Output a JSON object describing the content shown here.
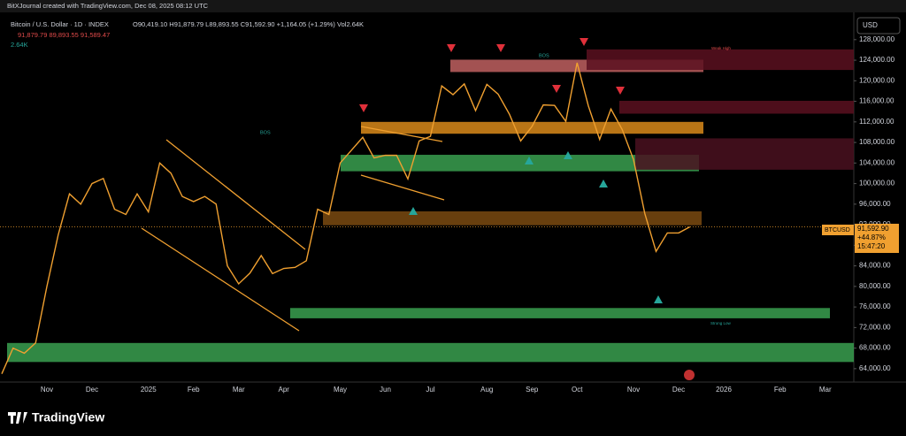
{
  "header": {
    "credit": "BitXJournal created with TradingView.com, Dec 08, 2025 08:12 UTC",
    "symbol": "Bitcoin / U.S. Dollar · 1D · INDEX",
    "ohlc": "O90,419.10 H91,879.79 L89,893.55 C91,592.90 +1,164.05 (+1.29%) Vol2.64K",
    "ma": "91,879.79  89,893.55  91,589.47",
    "vol": "2.64K",
    "currency": "USD"
  },
  "price_tag": {
    "symbol": "BTCUSD",
    "price": "91,592.90",
    "change": "+44.87%",
    "countdown": "15:47:20"
  },
  "annotations": [
    "BOS",
    "BOS",
    "Weak High",
    "Strong Low"
  ],
  "footer": {
    "brand": "TradingView"
  },
  "chart_data": {
    "type": "line",
    "color": "#f0a030",
    "categories": [
      null,
      null,
      null,
      null,
      "Nov",
      null,
      null,
      null,
      "Dec",
      null,
      null,
      null,
      null,
      "2025",
      null,
      null,
      null,
      "Feb",
      null,
      null,
      null,
      "Mar",
      null,
      null,
      null,
      "Apr",
      null,
      null,
      null,
      null,
      "May",
      null,
      null,
      null,
      "Jun",
      null,
      null,
      null,
      "Jul",
      null,
      null,
      null,
      null,
      "Aug",
      null,
      null,
      null,
      "Sep",
      null,
      null,
      null,
      "Oct",
      null,
      null,
      null,
      null,
      "Nov",
      null,
      null,
      null,
      "Dec",
      null,
      null,
      null,
      "2026",
      null,
      null,
      null,
      null,
      "Feb",
      null,
      null,
      null,
      "Mar",
      null,
      null,
      null,
      null
    ],
    "values": [
      63000,
      68000,
      67000,
      69000,
      80000,
      90000,
      98000,
      96000,
      100000,
      101000,
      95000,
      94000,
      98000,
      94500,
      104000,
      102000,
      97500,
      96500,
      97500,
      96000,
      84000,
      80500,
      82600,
      86000,
      82500,
      83500,
      83700,
      85000,
      95000,
      94000,
      104000,
      106500,
      109000,
      105000,
      105500,
      105500,
      100900,
      108300,
      109200,
      119000,
      117300,
      119400,
      114200,
      119300,
      117400,
      113500,
      108300,
      111100,
      115300,
      115200,
      112100,
      123500,
      115100,
      108600,
      114500,
      110500,
      104700,
      94200,
      86800,
      90400,
      90400,
      91592.9,
      null,
      null,
      null,
      null,
      null,
      null,
      null,
      null,
      null,
      null,
      null,
      null,
      null,
      null,
      null,
      null
    ],
    "ylim": [
      61400,
      133300
    ],
    "yticks": [
      {
        "value": 64000,
        "label": "64,000.00"
      },
      {
        "value": 68000,
        "label": "68,000.00"
      },
      {
        "value": 72000,
        "label": "72,000.00"
      },
      {
        "value": 76000,
        "label": "76,000.00"
      },
      {
        "value": 80000,
        "label": "80,000.00"
      },
      {
        "value": 84000,
        "label": "84,000.00"
      },
      {
        "value": 88000,
        "label": "88,000.00"
      },
      {
        "value": 92000,
        "label": "92,000.00"
      },
      {
        "value": 96000,
        "label": "96,000.00"
      },
      {
        "value": 100000,
        "label": "100,000.00"
      },
      {
        "value": 104000,
        "label": "104,000.00"
      },
      {
        "value": 108000,
        "label": "108,000.00"
      },
      {
        "value": 112000,
        "label": "112,000.00"
      },
      {
        "value": 116000,
        "label": "116,000.00"
      },
      {
        "value": 120000,
        "label": "120,000.00"
      },
      {
        "value": 124000,
        "label": "124,000.00"
      },
      {
        "value": 128000,
        "label": "128,000.00"
      }
    ],
    "zones": [
      {
        "range": [
          121700,
          124100
        ],
        "color": "#c06060"
      },
      {
        "range": [
          122100,
          126100
        ],
        "color": "#5a1020"
      },
      {
        "range": [
          113600,
          116100
        ],
        "color": "#5a1020"
      },
      {
        "range": [
          109700,
          112000
        ],
        "color": "#d98a1a"
      },
      {
        "range": [
          102400,
          105600
        ],
        "color": "#3aa050"
      },
      {
        "range": [
          102700,
          108800
        ],
        "color": "#4a1020"
      },
      {
        "range": [
          91900,
          94600
        ],
        "color": "#7a4a10"
      },
      {
        "range": [
          73800,
          75800
        ],
        "color": "#3aa050"
      },
      {
        "range": [
          65300,
          69000
        ],
        "color": "#3aa050"
      }
    ]
  }
}
